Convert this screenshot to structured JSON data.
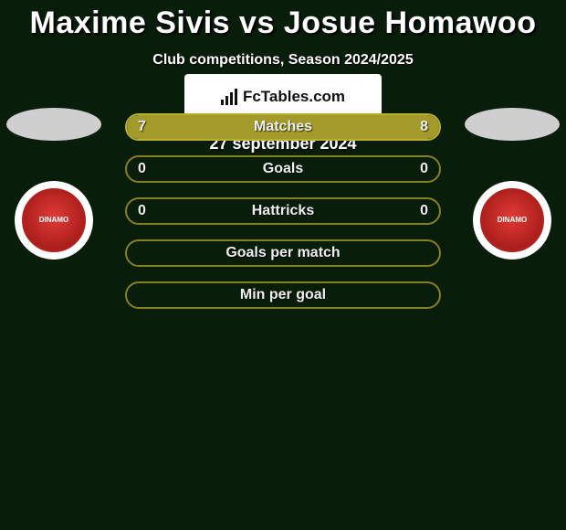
{
  "title": "Maxime Sivis vs Josue Homawoo",
  "subtitle": "Club competitions, Season 2024/2025",
  "date": "27 september 2024",
  "site_name": "FcTables.com",
  "club_label": "DINAMO",
  "palette": {
    "background": "#091d0b",
    "olive_fill": "#a29a2a",
    "olive_border": "#b8af30",
    "empty_border": "#877f20"
  },
  "rows": [
    {
      "label": "Matches",
      "left_value": "7",
      "right_value": "8",
      "left_pct": 46.7,
      "right_pct": 53.3,
      "show_values": true,
      "fill_color": "#a29a2a",
      "border_color": "#b8af30"
    },
    {
      "label": "Goals",
      "left_value": "0",
      "right_value": "0",
      "left_pct": 0,
      "right_pct": 0,
      "show_values": true,
      "fill_color": "#a29a2a",
      "border_color": "#877f20"
    },
    {
      "label": "Hattricks",
      "left_value": "0",
      "right_value": "0",
      "left_pct": 0,
      "right_pct": 0,
      "show_values": true,
      "fill_color": "#a29a2a",
      "border_color": "#877f20"
    },
    {
      "label": "Goals per match",
      "left_value": "",
      "right_value": "",
      "left_pct": 0,
      "right_pct": 0,
      "show_values": false,
      "fill_color": "#a29a2a",
      "border_color": "#877f20"
    },
    {
      "label": "Min per goal",
      "left_value": "",
      "right_value": "",
      "left_pct": 0,
      "right_pct": 0,
      "show_values": false,
      "fill_color": "#a29a2a",
      "border_color": "#877f20"
    }
  ]
}
